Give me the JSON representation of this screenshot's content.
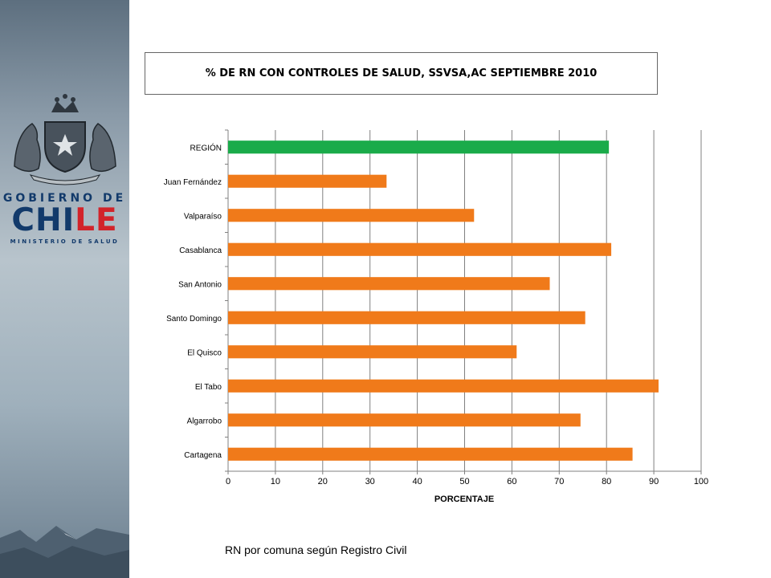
{
  "branding": {
    "line1": "GOBIERNO DE",
    "chile_part1": "CHI",
    "chile_part2": "LE",
    "ministry": "MINISTERIO DE SALUD"
  },
  "colors": {
    "region": "#1aab4a",
    "comuna": "#f07a1a",
    "grid": "#808080"
  },
  "chart_data": {
    "type": "bar",
    "orientation": "horizontal",
    "title": "% DE RN CON CONTROLES DE SALUD, SSVSA,AC SEPTIEMBRE 2010",
    "xlabel": "PORCENTAJE",
    "ylabel": "",
    "xlim": [
      0,
      100
    ],
    "xticks": [
      "0",
      "10",
      "20",
      "30",
      "40",
      "50",
      "60",
      "70",
      "80",
      "90",
      "100"
    ],
    "grid": true,
    "categories": [
      "REGIÓN",
      "Juan Fernández",
      "Valparaíso",
      "Casablanca",
      "San Antonio",
      "Santo Domingo",
      "El Quisco",
      "El Tabo",
      "Algarrobo",
      "Cartagena"
    ],
    "values": [
      80.5,
      33.5,
      52,
      81,
      68,
      75.5,
      61,
      91,
      74.5,
      85.5
    ]
  },
  "footnote": "RN  por comuna según Registro Civil"
}
